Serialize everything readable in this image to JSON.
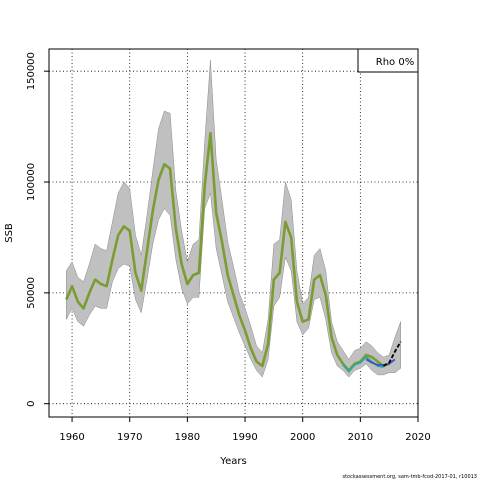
{
  "chart_data": {
    "type": "line",
    "title": "",
    "xlabel": "Years",
    "ylabel": "SSB",
    "xlim": [
      1956,
      2020
    ],
    "ylim": [
      -6000,
      160000
    ],
    "x_ticks": [
      1960,
      1970,
      1980,
      1990,
      2000,
      2010,
      2020
    ],
    "x_tick_labels": [
      "1960",
      "1970",
      "1980",
      "1990",
      "2000",
      "2010",
      "2020"
    ],
    "y_ticks": [
      0,
      50000,
      100000,
      150000
    ],
    "y_tick_labels": [
      "0",
      "50000",
      "100000",
      "150000"
    ],
    "grid": "dotted at ticks",
    "legend": {
      "placement": "top-right",
      "label": "Rho 0%"
    },
    "footer": "stockassessment.org, sam-tmb-fcod-2017-01, r10013",
    "confidence_band": {
      "x": [
        1959,
        1960,
        1961,
        1962,
        1963,
        1964,
        1965,
        1966,
        1967,
        1968,
        1969,
        1970,
        1971,
        1972,
        1973,
        1974,
        1975,
        1976,
        1977,
        1978,
        1979,
        1980,
        1981,
        1982,
        1983,
        1984,
        1985,
        1986,
        1987,
        1988,
        1989,
        1990,
        1991,
        1992,
        1993,
        1994,
        1995,
        1996,
        1997,
        1998,
        1999,
        2000,
        2001,
        2002,
        2003,
        2004,
        2005,
        2006,
        2007,
        2008,
        2009,
        2010,
        2011,
        2012,
        2013,
        2014,
        2015,
        2016,
        2017
      ],
      "upper": [
        60000,
        64000,
        57000,
        55000,
        63000,
        72000,
        70000,
        69000,
        82000,
        95000,
        100000,
        97000,
        76000,
        67000,
        85000,
        105000,
        124000,
        132000,
        131000,
        96000,
        78000,
        64000,
        72000,
        74000,
        118000,
        155000,
        110000,
        92000,
        73000,
        62000,
        50000,
        43000,
        35000,
        26000,
        23000,
        38000,
        72000,
        74000,
        100000,
        92000,
        60000,
        45000,
        48000,
        67000,
        70000,
        60000,
        37000,
        28000,
        24000,
        20000,
        24000,
        25000,
        28000,
        26000,
        23000,
        21000,
        22000,
        30000,
        37000
      ],
      "lower": [
        38000,
        43000,
        37000,
        35000,
        40000,
        44000,
        43000,
        43000,
        55000,
        61000,
        63000,
        62000,
        47000,
        41000,
        56000,
        72000,
        83000,
        88000,
        85000,
        65000,
        52000,
        45000,
        48000,
        48000,
        88000,
        95000,
        70000,
        58000,
        46000,
        39000,
        32000,
        26000,
        20000,
        15000,
        12000,
        20000,
        44000,
        48000,
        66000,
        60000,
        37000,
        31000,
        34000,
        47000,
        48000,
        38000,
        23000,
        17000,
        15000,
        12000,
        15000,
        16000,
        18000,
        15000,
        13000,
        13000,
        14000,
        14000,
        16000
      ]
    },
    "series": [
      {
        "name": "Rho 0%",
        "color": "#7a9c32",
        "x": [
          1959,
          1960,
          1961,
          1962,
          1963,
          1964,
          1965,
          1966,
          1967,
          1968,
          1969,
          1970,
          1971,
          1972,
          1973,
          1974,
          1975,
          1976,
          1977,
          1978,
          1979,
          1980,
          1981,
          1982,
          1983,
          1984,
          1985,
          1986,
          1987,
          1988,
          1989,
          1990,
          1991,
          1992,
          1993,
          1994,
          1995,
          1996,
          1997,
          1998,
          1999,
          2000,
          2001,
          2002,
          2003,
          2004,
          2005,
          2006,
          2007,
          2008,
          2009,
          2010,
          2011,
          2012,
          2013,
          2014,
          2015
        ],
        "values": [
          47000,
          53000,
          46000,
          43000,
          50000,
          56000,
          54000,
          53000,
          65000,
          76000,
          80000,
          78000,
          59000,
          51000,
          69000,
          87000,
          101000,
          108000,
          106000,
          79000,
          63000,
          54000,
          58000,
          59000,
          98000,
          122000,
          86000,
          73000,
          58000,
          49000,
          40000,
          33000,
          25000,
          19000,
          17000,
          27000,
          56000,
          59000,
          82000,
          75000,
          46000,
          37000,
          38000,
          56000,
          58000,
          49000,
          30000,
          22000,
          18000,
          15000,
          18000,
          19000,
          22000,
          21000,
          19000,
          17000,
          18000
        ]
      },
      {
        "name": "",
        "color": "#2aa7a0",
        "x": [
          2007,
          2008,
          2009,
          2010,
          2011,
          2012,
          2013,
          2014
        ],
        "values": [
          17500,
          14500,
          17500,
          18500,
          21000,
          19000,
          17000,
          16500
        ]
      },
      {
        "name": "",
        "color": "#3b55c6",
        "x": [
          2011,
          2012,
          2013,
          2014,
          2015,
          2016
        ],
        "values": [
          20000,
          18500,
          17500,
          17500,
          18000,
          20000
        ]
      },
      {
        "name": "",
        "color": "#000000",
        "x": [
          2014,
          2015,
          2016,
          2017
        ],
        "values": [
          17000,
          18500,
          23500,
          28000
        ]
      }
    ]
  }
}
